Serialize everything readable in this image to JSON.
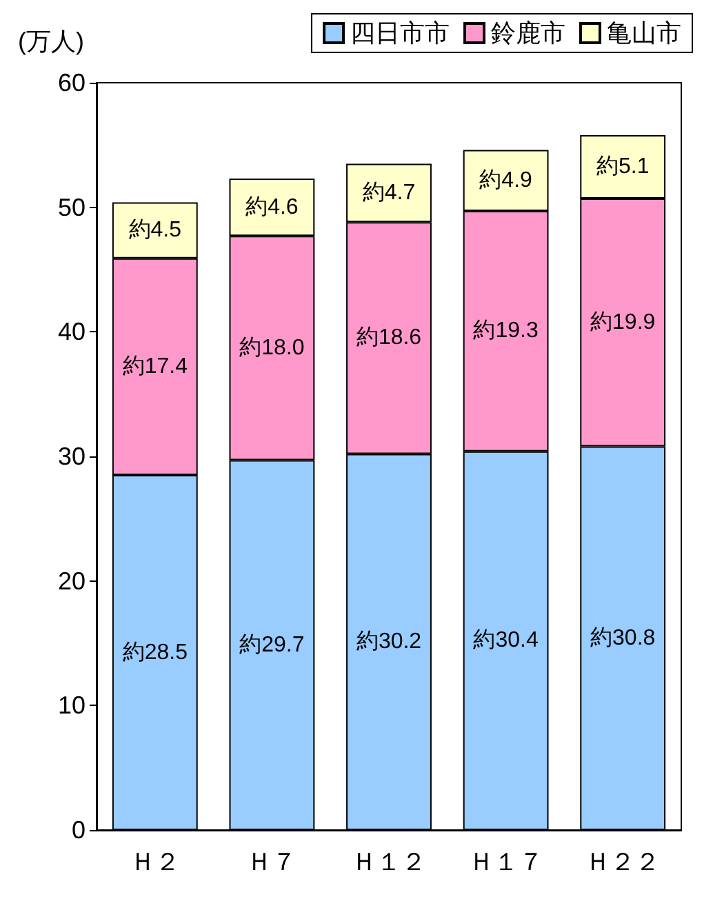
{
  "chart_data": {
    "type": "bar",
    "stacked": true,
    "ylabel": "(万人)",
    "categories": [
      "Ｈ２",
      "Ｈ７",
      "Ｈ１２",
      "Ｈ１７",
      "Ｈ２２"
    ],
    "series": [
      {
        "name": "四日市市",
        "color": "#99ccff",
        "values": [
          28.5,
          29.7,
          30.2,
          30.4,
          30.8
        ],
        "value_labels": [
          "約28.5",
          "約29.7",
          "約30.2",
          "約30.4",
          "約30.8"
        ]
      },
      {
        "name": "鈴鹿市",
        "color": "#ff99cc",
        "values": [
          17.4,
          18.0,
          18.6,
          19.3,
          19.9
        ],
        "value_labels": [
          "約17.4",
          "約18.0",
          "約18.6",
          "約19.3",
          "約19.9"
        ]
      },
      {
        "name": "亀山市",
        "color": "#ffffcc",
        "values": [
          4.5,
          4.6,
          4.7,
          4.9,
          5.1
        ],
        "value_labels": [
          "約4.5",
          "約4.6",
          "約4.7",
          "約4.9",
          "約5.1"
        ]
      }
    ],
    "ylim": [
      0,
      60
    ],
    "yticks": [
      0,
      10,
      20,
      30,
      40,
      50,
      60
    ],
    "grid": false,
    "legend": "top right"
  }
}
